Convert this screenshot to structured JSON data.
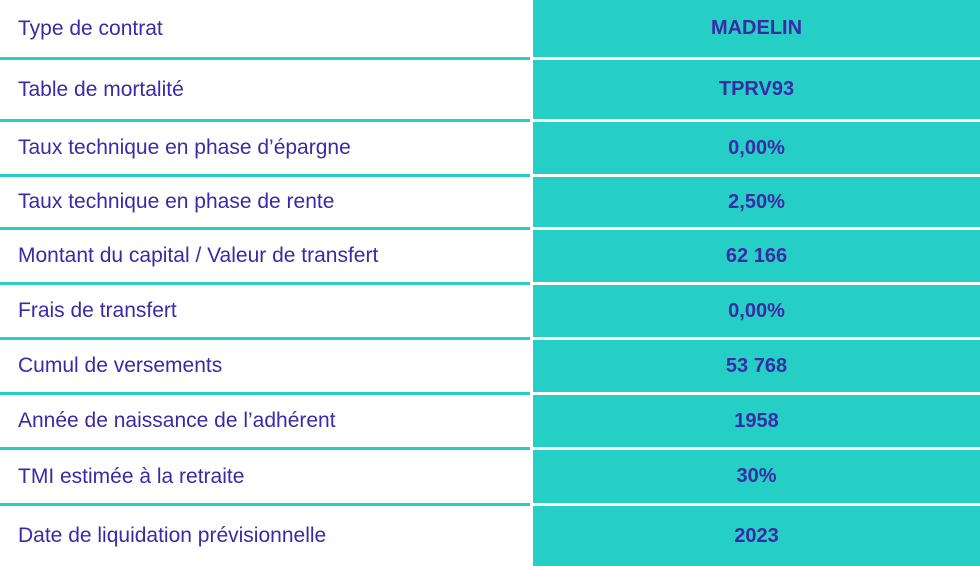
{
  "table": {
    "rows": [
      {
        "label": "Type de contrat",
        "value": "MADELIN"
      },
      {
        "label": "Table de mortalité",
        "value": "TPRV93"
      },
      {
        "label": "Taux technique en phase d’épargne",
        "value": "0,00%"
      },
      {
        "label": "Taux technique en phase de rente",
        "value": "2,50%"
      },
      {
        "label": "Montant du capital / Valeur de transfert",
        "value": "62 166"
      },
      {
        "label": "Frais de transfert",
        "value": "0,00%"
      },
      {
        "label": "Cumul de versements",
        "value": "53 768"
      },
      {
        "label": "Année de naissance de l’adhérent",
        "value": "1958"
      },
      {
        "label": "TMI estimée à la retraite",
        "value": "30%"
      },
      {
        "label": "Date de liquidation prévisionnelle",
        "value": "2023"
      }
    ]
  },
  "colors": {
    "accent": "#26cfc6",
    "text": "#3a2aa8",
    "background": "#ffffff"
  }
}
